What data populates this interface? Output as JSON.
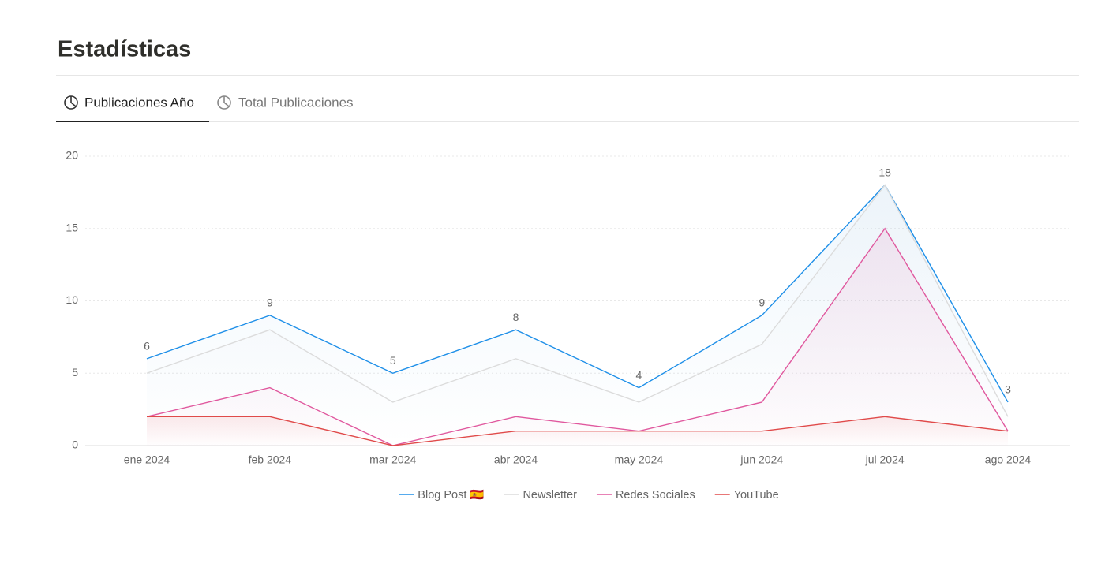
{
  "header": {
    "title": "Estadísticas"
  },
  "tabs": [
    {
      "label": "Publicaciones Año",
      "active": true
    },
    {
      "label": "Total Publicaciones",
      "active": false
    }
  ],
  "chart_data": {
    "type": "line",
    "categories": [
      "ene 2024",
      "feb 2024",
      "mar 2024",
      "abr 2024",
      "may 2024",
      "jun 2024",
      "jul 2024",
      "ago 2024"
    ],
    "series": [
      {
        "name": "Blog Post 🇪🇸",
        "color": "#1e8fe8",
        "values": [
          6,
          9,
          5,
          8,
          4,
          9,
          18,
          3
        ],
        "data_labels": true
      },
      {
        "name": "Newsletter",
        "color": "#dcdcdc",
        "values": [
          5,
          8,
          3,
          6,
          3,
          7,
          18,
          2
        ],
        "data_labels": false
      },
      {
        "name": "Redes Sociales",
        "color": "#e0589e",
        "values": [
          2,
          4,
          0,
          2,
          1,
          3,
          15,
          1
        ],
        "data_labels": false
      },
      {
        "name": "YouTube",
        "color": "#e04a4a",
        "values": [
          2,
          2,
          0,
          1,
          1,
          1,
          2,
          1
        ],
        "data_labels": false
      }
    ],
    "ylim": [
      0,
      20
    ],
    "yticks": [
      0,
      5,
      10,
      15,
      20
    ],
    "grid": true,
    "area": true,
    "legend": "bottom"
  }
}
